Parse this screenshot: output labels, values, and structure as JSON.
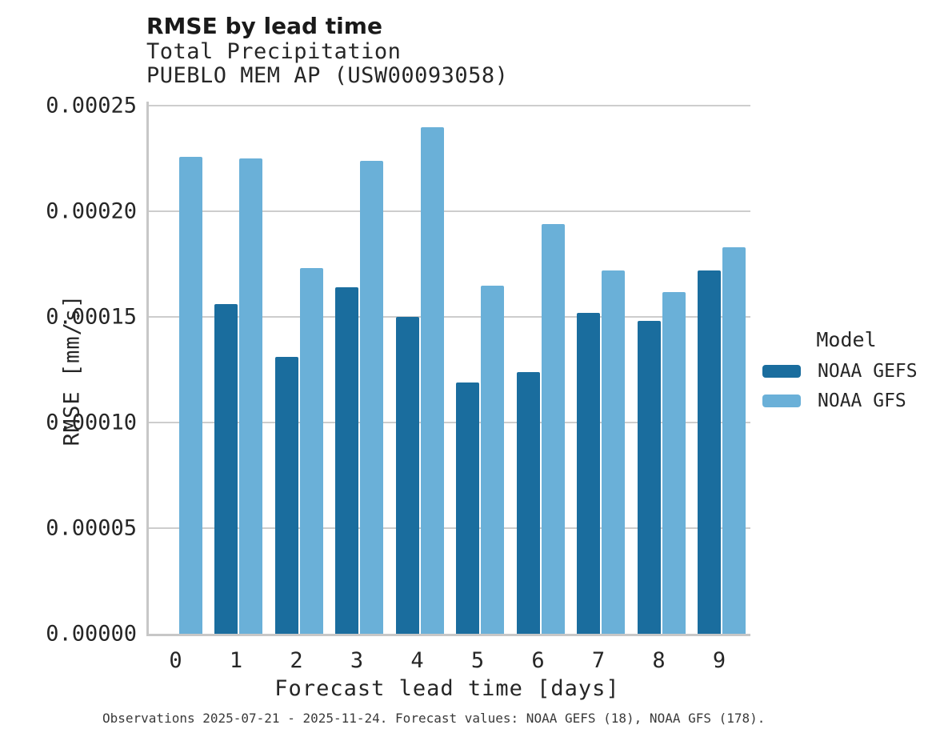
{
  "header": {
    "title": "RMSE by lead time",
    "subtitle_line1": "Total Precipitation",
    "subtitle_line2": "PUEBLO MEM AP (USW00093058)"
  },
  "chart_data": {
    "type": "bar",
    "title": "RMSE by lead time",
    "subtitle": [
      "Total Precipitation",
      "PUEBLO MEM AP (USW00093058)"
    ],
    "categories": [
      "0",
      "1",
      "2",
      "3",
      "4",
      "5",
      "6",
      "7",
      "8",
      "9"
    ],
    "series": [
      {
        "name": "NOAA GEFS",
        "color": "#1a6d9e",
        "values": [
          null,
          0.000156,
          0.000131,
          0.000164,
          0.00015,
          0.000119,
          0.000124,
          0.000152,
          0.000148,
          0.000172
        ]
      },
      {
        "name": "NOAA GFS",
        "color": "#6ab0d8",
        "values": [
          0.000226,
          0.000225,
          0.000173,
          0.000224,
          0.00024,
          0.000165,
          0.000194,
          0.000172,
          0.000162,
          0.000183
        ]
      }
    ],
    "xlabel": "Forecast lead time [days]",
    "ylabel": "RMSE [mm/s]",
    "ylim": [
      0,
      0.000252
    ],
    "yticks": [
      "0.00000",
      "0.00005",
      "0.00010",
      "0.00015",
      "0.00020",
      "0.00025"
    ],
    "grid": true,
    "legend_title": "Model",
    "legend_position": "right"
  },
  "footnote": "Observations 2025-07-21 - 2025-11-24. Forecast values: NOAA GEFS (18), NOAA GFS (178)."
}
